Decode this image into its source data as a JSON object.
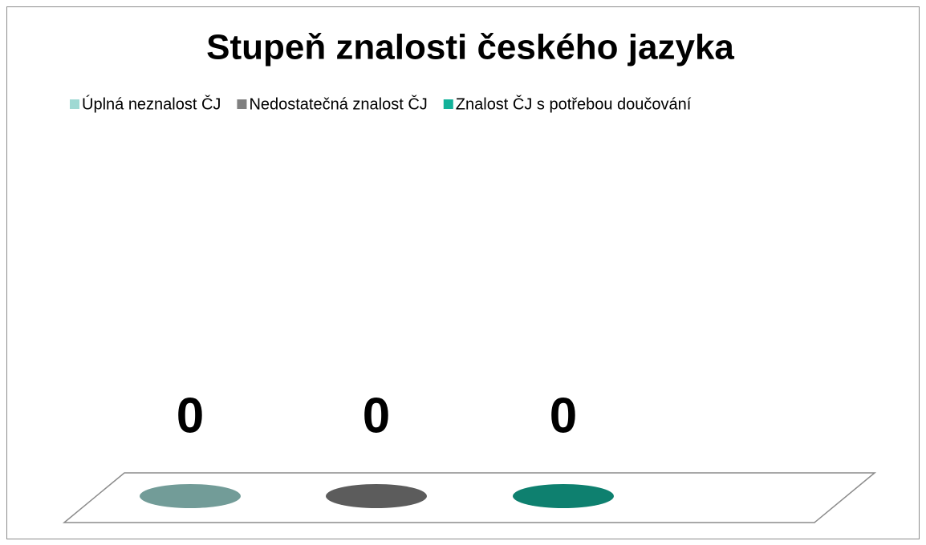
{
  "chart_data": {
    "type": "bar",
    "title": "Stupeň znalosti českého jazyka",
    "categories": [
      null
    ],
    "series": [
      {
        "name": "Úplná neznalost ČJ",
        "color": "#9fd9d3",
        "values": [
          0
        ]
      },
      {
        "name": "Nedostatečná znalost ČJ",
        "color": "#808080",
        "values": [
          0
        ]
      },
      {
        "name": "Znalost ČJ s potřebou doučování",
        "color": "#13b29a",
        "values": [
          0
        ]
      }
    ]
  }
}
